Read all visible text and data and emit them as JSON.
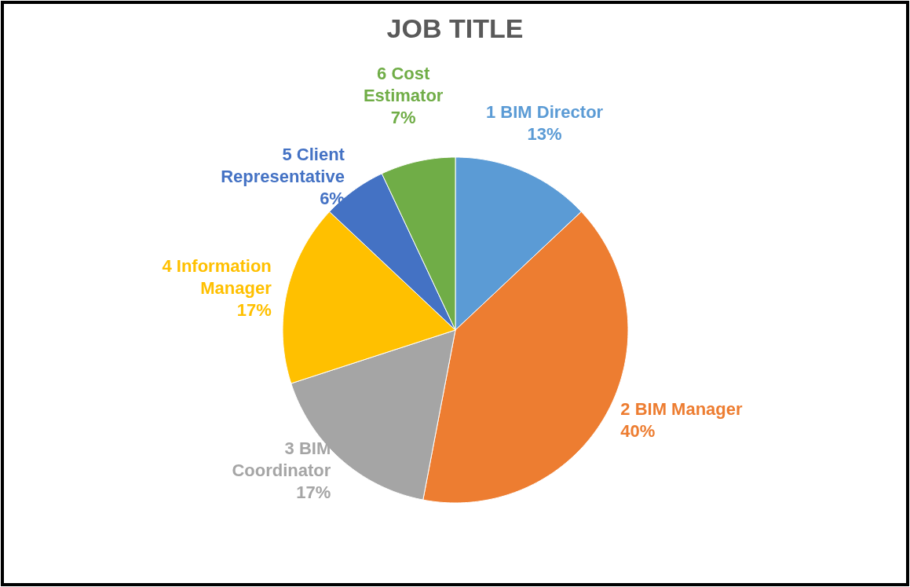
{
  "chart_data": {
    "type": "pie",
    "title": "JOB TITLE",
    "categories": [
      "1 BIM Director",
      "2 BIM Manager",
      "3 BIM Coordinator",
      "4 Information Manager",
      "5 Client Representative",
      "6 Cost Estimator"
    ],
    "values": [
      13,
      40,
      17,
      17,
      6,
      7
    ],
    "value_labels": [
      "13%",
      "40%",
      "17%",
      "17%",
      "6%",
      "7%"
    ],
    "colors": [
      "#5b9bd5",
      "#ed7d31",
      "#a5a5a5",
      "#ffc000",
      "#4472c4",
      "#70ad47"
    ]
  }
}
